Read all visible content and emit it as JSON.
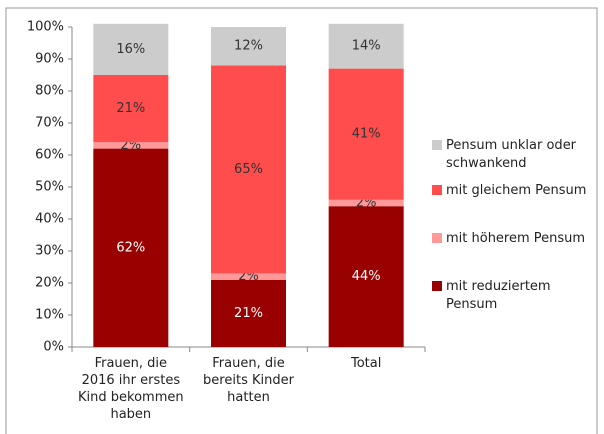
{
  "chart_data": {
    "type": "stacked_bar",
    "categories": [
      "Frauen, die 2016 ihr erstes Kind bekommen haben",
      "Frauen, die bereits Kinder hatten",
      "Total"
    ],
    "series": [
      {
        "name": "mit reduziertem Pensum",
        "color": "#990000",
        "values": [
          62,
          21,
          44
        ],
        "value_labels": [
          "62%",
          "21%",
          "44%"
        ]
      },
      {
        "name": "mit höherem Pensum",
        "color": "#ff9999",
        "values": [
          2,
          2,
          2
        ],
        "value_labels": [
          "2%",
          "2%",
          "2%"
        ]
      },
      {
        "name": "mit gleichem Pensum",
        "color": "#ff4d4d",
        "values": [
          21,
          65,
          41
        ],
        "value_labels": [
          "21%",
          "65%",
          "41%"
        ]
      },
      {
        "name": "Pensum unklar oder schwankend",
        "color": "#cccccc",
        "values": [
          16,
          12,
          14
        ],
        "value_labels": [
          "16%",
          "12%",
          "14%"
        ]
      }
    ],
    "ylim": [
      0,
      100
    ],
    "yticks": [
      {
        "value": 0,
        "label": "0%"
      },
      {
        "value": 10,
        "label": "10%"
      },
      {
        "value": 20,
        "label": "20%"
      },
      {
        "value": 30,
        "label": "30%"
      },
      {
        "value": 40,
        "label": "40%"
      },
      {
        "value": 50,
        "label": "50%"
      },
      {
        "value": 60,
        "label": "60%"
      },
      {
        "value": 70,
        "label": "70%"
      },
      {
        "value": 80,
        "label": "80%"
      },
      {
        "value": 90,
        "label": "90%"
      },
      {
        "value": 100,
        "label": "100%"
      }
    ],
    "legend": "right"
  }
}
